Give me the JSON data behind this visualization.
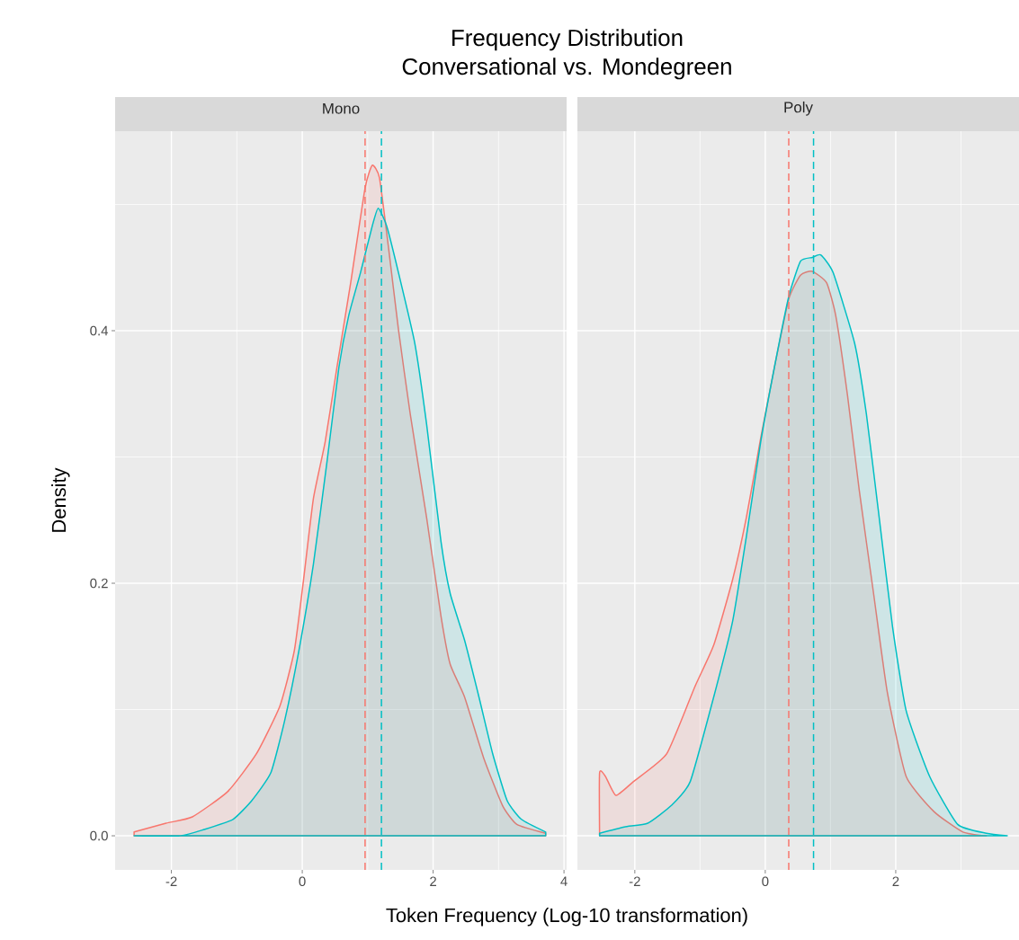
{
  "chart_data": [
    {
      "type": "area",
      "title": "Mono",
      "xlabel": "Token Frequency (Log-10 transformation)",
      "ylabel": "Density",
      "annotations": [
        "Frequency Distribution",
        "Conversational vs. Mondegreen"
      ],
      "xlim": [
        -2.86,
        4.04
      ],
      "ylim": [
        -0.027,
        0.558
      ],
      "xticks": [
        -2,
        0,
        2,
        4
      ],
      "yticks": [
        {
          "value": 0,
          "label": "0.0"
        },
        {
          "value": 0.2,
          "label": "0.2"
        },
        {
          "value": 0.4,
          "label": "0.4"
        }
      ],
      "grid": true,
      "series": [
        {
          "color": "#f8766d",
          "x": [
            -2.57,
            -2.08,
            -1.68,
            -1.14,
            -0.7,
            -0.34,
            -0.12,
            0.02,
            0.17,
            0.35,
            0.53,
            0.74,
            0.96,
            1.07,
            1.18,
            1.32,
            1.47,
            1.65,
            1.9,
            2.12,
            2.26,
            2.48,
            2.77,
            3.06,
            3.28,
            3.72
          ],
          "values": [
            0.003,
            0.01,
            0.015,
            0.035,
            0.065,
            0.103,
            0.147,
            0.203,
            0.267,
            0.312,
            0.371,
            0.438,
            0.513,
            0.531,
            0.521,
            0.465,
            0.401,
            0.334,
            0.252,
            0.174,
            0.136,
            0.11,
            0.062,
            0.024,
            0.009,
            0.002
          ]
        },
        {
          "color": "#00bfc4",
          "x": [
            -2.57,
            -1.86,
            -1.5,
            -1.06,
            -0.77,
            -0.48,
            -0.27,
            -0.05,
            0.17,
            0.38,
            0.56,
            0.71,
            0.89,
            1.07,
            1.16,
            1.29,
            1.47,
            1.72,
            1.9,
            2.12,
            2.26,
            2.48,
            2.7,
            2.91,
            3.13,
            3.35,
            3.72
          ],
          "values": [
            0.0,
            0.0,
            0.005,
            0.013,
            0.028,
            0.05,
            0.091,
            0.147,
            0.215,
            0.297,
            0.371,
            0.412,
            0.446,
            0.483,
            0.497,
            0.483,
            0.446,
            0.39,
            0.326,
            0.233,
            0.192,
            0.155,
            0.11,
            0.065,
            0.028,
            0.013,
            0.003
          ]
        }
      ],
      "ref_lines": [
        {
          "axis": "x",
          "value": 0.96,
          "color": "#f8766d",
          "line_style": "dashed"
        },
        {
          "axis": "x",
          "value": 1.21,
          "color": "#00bfc4",
          "line_style": "dashed"
        }
      ]
    },
    {
      "type": "area",
      "title": "Poly",
      "xlim": [
        -2.88,
        3.89
      ],
      "ylim": [
        -0.027,
        0.558
      ],
      "xticks": [
        -2,
        0,
        2
      ],
      "yticks": [
        0,
        0.2,
        0.4
      ],
      "tick_labels": "x",
      "grid": true,
      "series": [
        {
          "color": "#f8766d",
          "x": [
            -2.54,
            -2.54,
            -2.45,
            -2.29,
            -2.02,
            -1.51,
            -1.08,
            -0.79,
            -0.5,
            -0.29,
            -0.07,
            0.14,
            0.36,
            0.54,
            0.72,
            0.94,
            1.08,
            1.26,
            1.44,
            1.66,
            1.87,
            2.16,
            2.59,
            3.03,
            3.39
          ],
          "values": [
            0.0,
            0.05,
            0.047,
            0.032,
            0.043,
            0.065,
            0.118,
            0.151,
            0.203,
            0.252,
            0.315,
            0.371,
            0.425,
            0.444,
            0.447,
            0.438,
            0.412,
            0.349,
            0.274,
            0.192,
            0.114,
            0.047,
            0.019,
            0.003,
            0.0
          ]
        },
        {
          "color": "#00bfc4",
          "x": [
            -2.54,
            -2.16,
            -1.8,
            -1.44,
            -1.15,
            -0.79,
            -0.5,
            -0.29,
            -0.07,
            0.14,
            0.36,
            0.54,
            0.72,
            0.85,
            1.04,
            1.37,
            1.55,
            1.73,
            1.95,
            2.16,
            2.52,
            2.95,
            3.39,
            3.71
          ],
          "values": [
            0.002,
            0.007,
            0.01,
            0.024,
            0.043,
            0.11,
            0.17,
            0.237,
            0.312,
            0.371,
            0.427,
            0.455,
            0.458,
            0.46,
            0.446,
            0.39,
            0.334,
            0.259,
            0.166,
            0.099,
            0.047,
            0.009,
            0.002,
            0.0
          ]
        }
      ],
      "ref_lines": [
        {
          "axis": "x",
          "value": 0.36,
          "color": "#f8766d",
          "line_style": "dashed"
        },
        {
          "axis": "x",
          "value": 0.74,
          "color": "#00bfc4",
          "line_style": "dashed"
        }
      ]
    }
  ]
}
